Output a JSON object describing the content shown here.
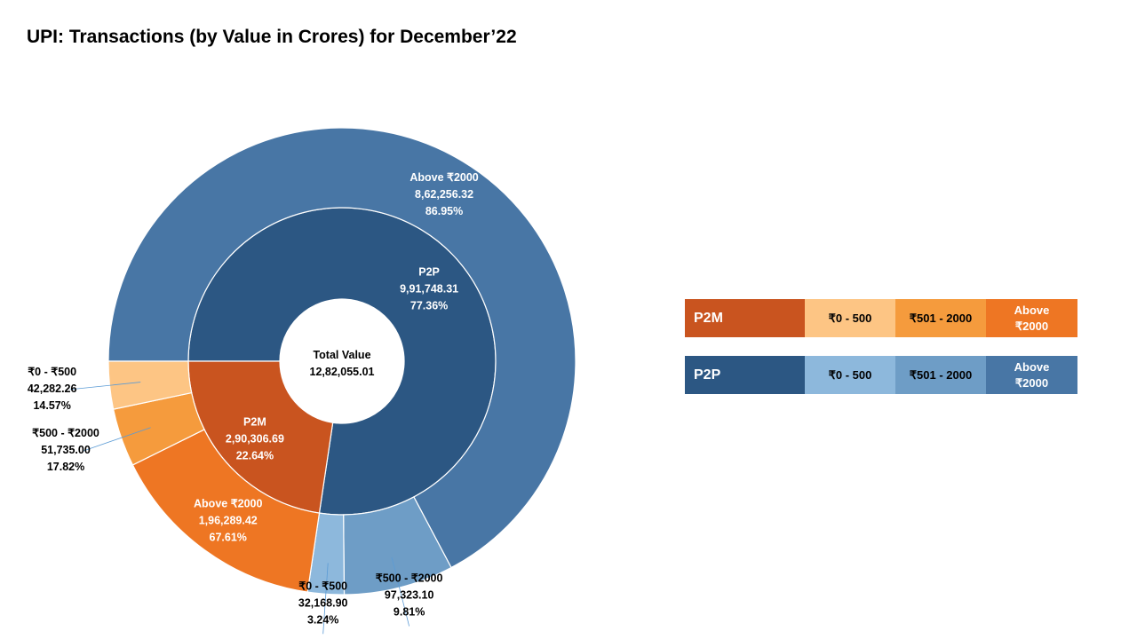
{
  "title": "UPI: Transactions (by Value in Crores) for December’22",
  "chart_data": {
    "type": "sunburst",
    "center": {
      "label": "Total Value",
      "value": "12,82,055.01"
    },
    "inner_ring": [
      {
        "name": "P2P",
        "value": 991748.31,
        "value_label": "9,91,748.31",
        "pct": "77.36%",
        "color": "#2C5783"
      },
      {
        "name": "P2M",
        "value": 290306.69,
        "value_label": "2,90,306.69",
        "pct": "22.64%",
        "color": "#C9541F"
      }
    ],
    "outer_ring": [
      {
        "parent": "P2P",
        "name": "Above ₹2000",
        "value": 862256.32,
        "value_label": "8,62,256.32",
        "pct": "86.95%",
        "color": "#4876A5",
        "label_color": "#ffffff"
      },
      {
        "parent": "P2P",
        "name": "₹500 - ₹2000",
        "value": 97323.1,
        "value_label": "97,323.10",
        "pct": "9.81%",
        "color": "#6E9DC6",
        "label_color": "#000000"
      },
      {
        "parent": "P2P",
        "name": "₹0 - ₹500",
        "value": 32168.9,
        "value_label": "32,168.90",
        "pct": "3.24%",
        "color": "#8DB8DC",
        "label_color": "#000000"
      },
      {
        "parent": "P2M",
        "name": "Above ₹2000",
        "value": 196289.42,
        "value_label": "1,96,289.42",
        "pct": "67.61%",
        "color": "#EE7623",
        "label_color": "#ffffff"
      },
      {
        "parent": "P2M",
        "name": "₹500 - ₹2000",
        "value": 51735.0,
        "value_label": "51,735.00",
        "pct": "17.82%",
        "color": "#F59B3D",
        "label_color": "#000000"
      },
      {
        "parent": "P2M",
        "name": "₹0 - ₹500",
        "value": 42282.26,
        "value_label": "42,282.26",
        "pct": "14.57%",
        "color": "#FDC584",
        "label_color": "#000000"
      }
    ]
  },
  "legend": {
    "p2m": {
      "label": "P2M",
      "color": "#C9541F",
      "items": [
        {
          "label": "₹0 - 500",
          "color": "#FDC584",
          "text_color": "#000000"
        },
        {
          "label": "₹501 - 2000",
          "color": "#F59B3D",
          "text_color": "#000000"
        },
        {
          "label": "Above\n₹2000",
          "color": "#EE7623",
          "text_color": "#ffffff"
        }
      ]
    },
    "p2p": {
      "label": "P2P",
      "color": "#2C5783",
      "items": [
        {
          "label": "₹0 - 500",
          "color": "#8DB8DC",
          "text_color": "#000000"
        },
        {
          "label": "₹501 - 2000",
          "color": "#6E9DC6",
          "text_color": "#000000"
        },
        {
          "label": "Above\n₹2000",
          "color": "#4876A5",
          "text_color": "#ffffff"
        }
      ]
    }
  }
}
